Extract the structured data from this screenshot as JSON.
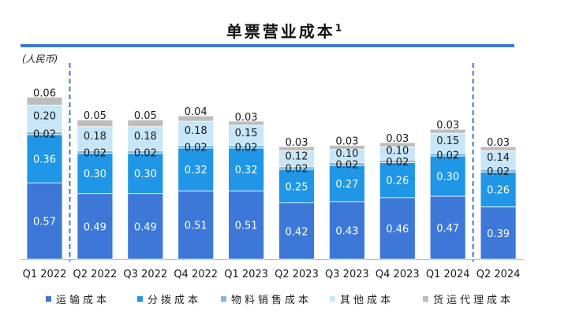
{
  "chart_data": {
    "type": "bar",
    "stacked": true,
    "title": "单票营业成本",
    "title_sup": "1",
    "unit_label": "(人民币)",
    "categories": [
      "Q1 2022",
      "Q2 2022",
      "Q3 2022",
      "Q4 2022",
      "Q1 2023",
      "Q2 2023",
      "Q3 2023",
      "Q4 2023",
      "Q1 2024",
      "Q2 2024"
    ],
    "series": [
      {
        "name": "运输成本",
        "color": "#3d78d8",
        "values": [
          0.57,
          0.49,
          0.49,
          0.51,
          0.51,
          0.42,
          0.43,
          0.46,
          0.47,
          0.39
        ]
      },
      {
        "name": "分拨成本",
        "color": "#1f96e6",
        "values": [
          0.36,
          0.3,
          0.3,
          0.32,
          0.32,
          0.25,
          0.27,
          0.26,
          0.3,
          0.26
        ]
      },
      {
        "name": "物料销售成本",
        "color": "#82b9d6",
        "values": [
          0.02,
          0.02,
          0.02,
          0.02,
          0.02,
          0.02,
          0.02,
          0.02,
          0.02,
          0.02
        ]
      },
      {
        "name": "其他成本",
        "color": "#c7e6f7",
        "values": [
          0.2,
          0.18,
          0.18,
          0.18,
          0.15,
          0.12,
          0.1,
          0.1,
          0.15,
          0.14
        ]
      },
      {
        "name": "货运代理成本",
        "color": "#bdbdbd",
        "values": [
          0.06,
          0.05,
          0.05,
          0.04,
          0.03,
          0.03,
          0.03,
          0.03,
          0.03,
          0.03
        ]
      }
    ],
    "dividers_after": [
      "Q1 2022",
      "Q1 2024"
    ],
    "legend_position": "bottom",
    "grid": false
  }
}
